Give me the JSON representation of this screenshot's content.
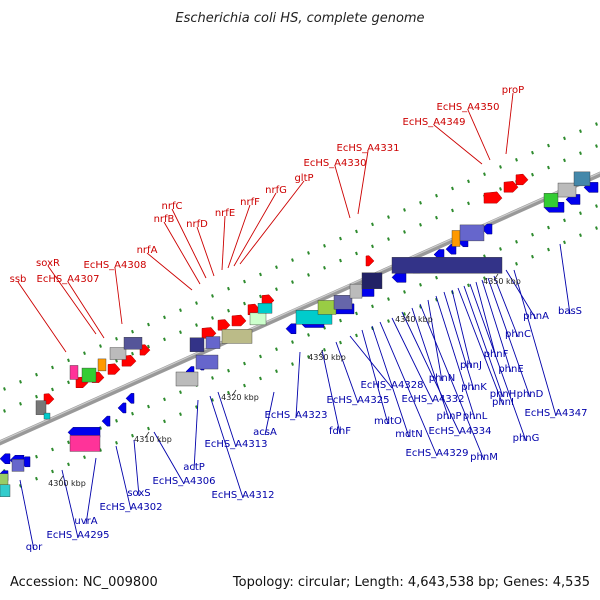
{
  "title": "Escherichia coli HS, complete genome",
  "footer": {
    "accession": "Accession: NC_009800",
    "summary": "Topology: circular; Length: 4,643,538 bp; Genes: 4,535"
  },
  "colors": {
    "forward_label": "#cc0000",
    "reverse_label": "#0000aa",
    "forward_gene": "#ff0000",
    "reverse_gene": "#0000ee",
    "backbone": "#888888",
    "tick_dot": "#2e8b2e"
  },
  "ticks": [
    {
      "label": "4300 kbp"
    },
    {
      "label": "4310 kbp"
    },
    {
      "label": "4320 kbp"
    },
    {
      "label": "4330 kbp"
    },
    {
      "label": "4340 kbp"
    },
    {
      "label": "4350 kbp"
    }
  ],
  "forward_labels": [
    "ssb",
    "soxR",
    "EcHS_A4307",
    "EcHS_A4308",
    "nrfA",
    "nrfB",
    "nrfC",
    "nrfD",
    "nrfE",
    "nrfF",
    "nrfG",
    "gltP",
    "EcHS_A4330",
    "EcHS_A4331",
    "EcHS_A4349",
    "EcHS_A4350",
    "proP"
  ],
  "reverse_labels": [
    "qor",
    "EcHS_A4295",
    "uvrA",
    "EcHS_A4302",
    "soxS",
    "EcHS_A4306",
    "actP",
    "EcHS_A4312",
    "EcHS_A4313",
    "acsA",
    "EcHS_A4323",
    "fdhF",
    "EcHS_A4325",
    "EcHS_A4328",
    "mdtO",
    "mdtN",
    "EcHS_A4329",
    "EcHS_A4332",
    "EcHS_A4334",
    "phnP",
    "phnM",
    "phnN",
    "phnL",
    "phnK",
    "phnJ",
    "phnI",
    "phnH",
    "phnG",
    "phnF",
    "phnE",
    "phnD",
    "phnC",
    "phnA",
    "EcHS_A4347",
    "basS"
  ]
}
